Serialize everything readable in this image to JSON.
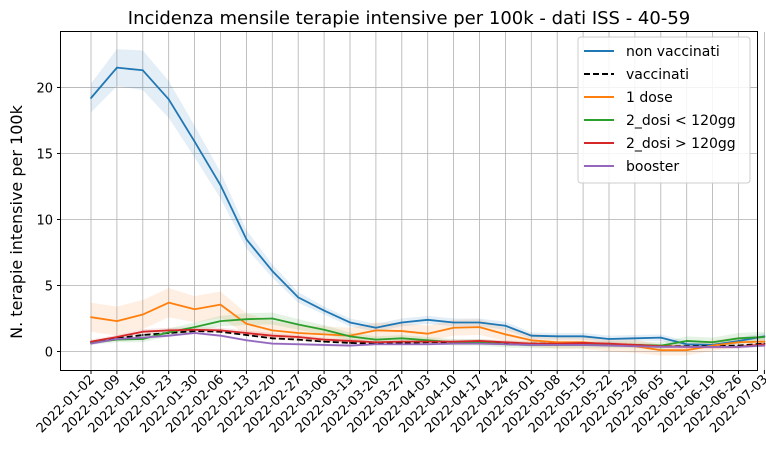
{
  "chart_data": {
    "type": "line",
    "title": "Incidenza mensile terapie intensive per 100k - dati ISS - 40-59",
    "xlabel": "",
    "ylabel": "N. terapie intensive per 100k",
    "ylim": [
      -1.4,
      24.2
    ],
    "yticks": [
      0,
      5,
      10,
      15,
      20
    ],
    "grid": true,
    "legend_position": "top-right",
    "categories": [
      "2022-01-02",
      "2022-01-09",
      "2022-01-16",
      "2022-01-23",
      "2022-01-30",
      "2022-02-06",
      "2022-02-13",
      "2022-02-20",
      "2022-02-27",
      "2022-03-06",
      "2022-03-13",
      "2022-03-20",
      "2022-03-27",
      "2022-04-03",
      "2022-04-10",
      "2022-04-17",
      "2022-04-24",
      "2022-05-01",
      "2022-05-08",
      "2022-05-15",
      "2022-05-22",
      "2022-05-29",
      "2022-06-05",
      "2022-06-12",
      "2022-06-19",
      "2022-06-26",
      "2022-07-03"
    ],
    "series": [
      {
        "name": "non vaccinati",
        "color": "#1f77b4",
        "dash": "solid",
        "values": [
          19.2,
          21.5,
          21.3,
          19.1,
          15.9,
          12.6,
          8.5,
          6.1,
          4.1,
          3.1,
          2.2,
          1.8,
          2.2,
          2.4,
          2.2,
          2.2,
          1.95,
          1.2,
          1.15,
          1.15,
          0.95,
          1.0,
          1.05,
          0.55,
          0.5,
          0.8,
          1.15
        ],
        "band": [
          1.1,
          1.4,
          1.5,
          1.4,
          1.2,
          1.0,
          0.7,
          0.5,
          0.4,
          0.3,
          0.3,
          0.3,
          0.3,
          0.3,
          0.3,
          0.3,
          0.3,
          0.25,
          0.25,
          0.25,
          0.25,
          0.25,
          0.25,
          0.25,
          0.25,
          0.25,
          0.25
        ]
      },
      {
        "name": "vaccinati",
        "color": "#000000",
        "dash": "dashed",
        "values": [
          0.7,
          1.0,
          1.25,
          1.4,
          1.55,
          1.5,
          1.25,
          1.0,
          0.9,
          0.75,
          0.65,
          0.6,
          0.65,
          0.7,
          0.7,
          0.7,
          0.65,
          0.6,
          0.6,
          0.6,
          0.55,
          0.5,
          0.4,
          0.4,
          0.4,
          0.45,
          0.6
        ],
        "band": null
      },
      {
        "name": "1 dose",
        "color": "#ff7f0e",
        "dash": "solid",
        "values": [
          2.6,
          2.3,
          2.8,
          3.7,
          3.2,
          3.55,
          2.1,
          1.6,
          1.4,
          1.3,
          1.2,
          1.6,
          1.55,
          1.35,
          1.8,
          1.85,
          1.3,
          0.85,
          0.7,
          0.7,
          0.5,
          0.4,
          0.1,
          0.1,
          0.45,
          0.7,
          0.75
        ],
        "band": [
          1.1,
          1.1,
          1.1,
          1.1,
          1.0,
          1.0,
          0.8,
          0.7,
          0.6,
          0.6,
          0.6,
          0.6,
          0.6,
          0.6,
          0.6,
          0.6,
          0.5,
          0.5,
          0.5,
          0.5,
          0.5,
          0.5,
          0.4,
          0.4,
          0.4,
          0.4,
          0.4
        ]
      },
      {
        "name": "2_dosi < 120gg",
        "color": "#2ca02c",
        "dash": "solid",
        "values": [
          0.65,
          0.9,
          0.95,
          1.45,
          1.85,
          2.3,
          2.45,
          2.5,
          2.05,
          1.65,
          1.15,
          0.9,
          1.0,
          0.85,
          0.7,
          0.7,
          0.55,
          0.5,
          0.5,
          0.5,
          0.5,
          0.5,
          0.45,
          0.8,
          0.7,
          1.0,
          1.1
        ],
        "band": [
          0.15,
          0.2,
          0.25,
          0.3,
          0.35,
          0.4,
          0.45,
          0.45,
          0.4,
          0.35,
          0.3,
          0.25,
          0.25,
          0.25,
          0.25,
          0.25,
          0.25,
          0.25,
          0.25,
          0.25,
          0.25,
          0.25,
          0.25,
          0.35,
          0.35,
          0.4,
          0.4
        ]
      },
      {
        "name": "2_dosi > 120gg",
        "color": "#d62728",
        "dash": "solid",
        "values": [
          0.75,
          1.1,
          1.5,
          1.6,
          1.65,
          1.6,
          1.4,
          1.2,
          1.1,
          0.9,
          0.8,
          0.7,
          0.75,
          0.75,
          0.75,
          0.8,
          0.7,
          0.6,
          0.6,
          0.65,
          0.6,
          0.5,
          0.4,
          0.35,
          0.35,
          0.35,
          0.55
        ],
        "band": [
          0.15,
          0.15,
          0.2,
          0.2,
          0.2,
          0.2,
          0.2,
          0.2,
          0.15,
          0.15,
          0.15,
          0.15,
          0.15,
          0.15,
          0.15,
          0.15,
          0.15,
          0.15,
          0.15,
          0.15,
          0.15,
          0.15,
          0.15,
          0.15,
          0.15,
          0.15,
          0.15
        ]
      },
      {
        "name": "booster",
        "color": "#9467bd",
        "dash": "solid",
        "values": [
          0.6,
          0.95,
          1.05,
          1.2,
          1.4,
          1.2,
          0.85,
          0.6,
          0.55,
          0.5,
          0.45,
          0.55,
          0.55,
          0.55,
          0.6,
          0.6,
          0.55,
          0.5,
          0.5,
          0.5,
          0.45,
          0.4,
          0.35,
          0.35,
          0.35,
          0.35,
          0.45
        ],
        "band": [
          0.1,
          0.1,
          0.1,
          0.1,
          0.1,
          0.1,
          0.1,
          0.1,
          0.1,
          0.1,
          0.1,
          0.1,
          0.1,
          0.1,
          0.1,
          0.1,
          0.1,
          0.1,
          0.1,
          0.1,
          0.1,
          0.1,
          0.1,
          0.1,
          0.1,
          0.1,
          0.1
        ]
      }
    ]
  }
}
